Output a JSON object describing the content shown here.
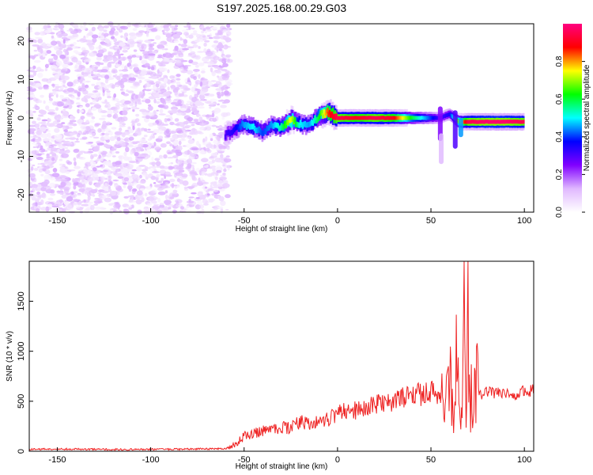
{
  "figure": {
    "title": "S197.2025.168.00.29.G03"
  },
  "chart_data": [
    {
      "type": "heatmap",
      "title": "S197.2025.168.00.29.G03",
      "xlabel": "Height of straight line (km)",
      "ylabel": "Frequency (Hz)",
      "xlim": [
        -165,
        105
      ],
      "ylim": [
        -24.5,
        24.5
      ],
      "x_ticks": [
        -150,
        -100,
        -50,
        0,
        50,
        100
      ],
      "y_ticks": [
        -20,
        -10,
        0,
        10,
        20
      ],
      "colorbar": {
        "label": "Normalized spectral amplitude",
        "range": [
          0,
          1
        ],
        "ticks": [
          "0.0",
          "0.2",
          "0.4",
          "0.6",
          "0.8"
        ],
        "tick_values": [
          0,
          0.2,
          0.4,
          0.6,
          0.8
        ],
        "colormap": [
          "#ffffff",
          "#e0b8ff",
          "#8000ff",
          "#0000ff",
          "#00ffff",
          "#00ff00",
          "#ffff00",
          "#ff0000",
          "#ff0080"
        ]
      },
      "noise_region": {
        "x_range": [
          -165,
          -58
        ],
        "amplitude_range": [
          0,
          0.12
        ]
      },
      "signal_track": {
        "description_points_x": [
          -60,
          -55,
          -50,
          -45,
          -40,
          -35,
          -30,
          -25,
          -20,
          -15,
          -10,
          -5,
          0,
          10,
          20,
          30,
          40,
          50,
          55,
          60,
          65,
          70,
          80,
          90,
          100
        ],
        "frequency": [
          -4.5,
          -3,
          -1.5,
          -2.5,
          -3.5,
          -2,
          -2.5,
          -0.5,
          -1.5,
          -2,
          0.5,
          1.5,
          0,
          0,
          0,
          0,
          0,
          0,
          0,
          1,
          -1,
          -1,
          -1,
          -1,
          -1
        ],
        "amplitude": [
          0.3,
          0.35,
          0.45,
          0.5,
          0.4,
          0.45,
          0.55,
          0.75,
          0.5,
          0.45,
          0.6,
          0.85,
          0.95,
          0.9,
          0.95,
          0.9,
          0.6,
          0.4,
          0.3,
          0.35,
          0.7,
          0.95,
          0.98,
          0.98,
          0.95
        ]
      }
    },
    {
      "type": "line",
      "xlabel": "Height of straight line (km)",
      "ylabel": "SNR (10 * v/v)",
      "xlim": [
        -165,
        105
      ],
      "ylim": [
        0,
        1900
      ],
      "x_ticks": [
        -150,
        -100,
        -50,
        0,
        50,
        100
      ],
      "y_ticks": [
        0,
        500,
        1000,
        1500
      ],
      "series": [
        {
          "color": "#ee2222",
          "x": [
            -165,
            -150,
            -120,
            -90,
            -60,
            -55,
            -50,
            -45,
            -40,
            -35,
            -30,
            -25,
            -20,
            -15,
            -10,
            -5,
            0,
            5,
            10,
            15,
            20,
            25,
            30,
            35,
            40,
            45,
            50,
            55,
            58,
            60,
            62,
            64,
            65,
            66,
            67,
            68,
            69,
            70,
            71,
            72,
            73,
            74,
            75,
            78,
            80,
            85,
            90,
            95,
            100,
            105
          ],
          "y": [
            20,
            22,
            18,
            20,
            25,
            60,
            150,
            180,
            200,
            220,
            240,
            230,
            300,
            260,
            310,
            320,
            380,
            400,
            410,
            430,
            460,
            480,
            500,
            540,
            560,
            570,
            580,
            590,
            560,
            900,
            300,
            1000,
            1400,
            200,
            900,
            1650,
            100,
            1900,
            150,
            800,
            300,
            900,
            600,
            560,
            600,
            580,
            590,
            570,
            600,
            610
          ]
        }
      ]
    }
  ]
}
